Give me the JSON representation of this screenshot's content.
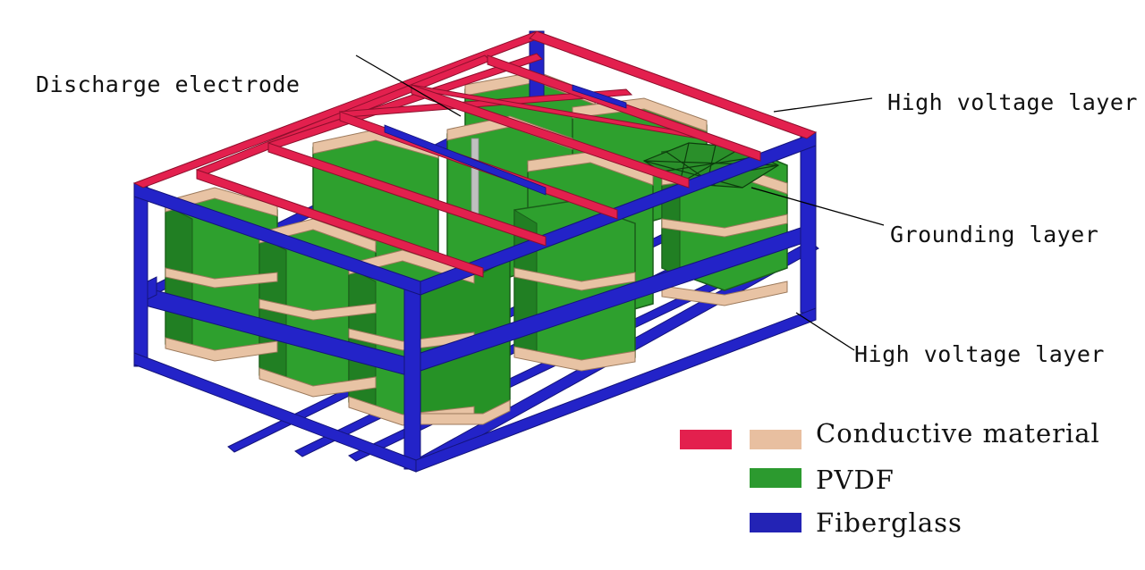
{
  "labels": {
    "discharge_electrode": "Discharge electrode",
    "high_voltage_top": "High voltage layer",
    "grounding": "Grounding layer",
    "high_voltage_bottom": "High voltage layer"
  },
  "legend": [
    {
      "text": "Conductive material",
      "colors": [
        "#e3204e",
        "#e8bfa0"
      ]
    },
    {
      "text": "PVDF",
      "colors": [
        "#2c9a2f"
      ]
    },
    {
      "text": "Fiberglass",
      "colors": [
        "#2323b5"
      ]
    }
  ],
  "colors": {
    "fiberglass": "#2323c8",
    "fiberglass_dark": "#1a1a9a",
    "conductive_red": "#e3204e",
    "conductive_tan": "#e8c3a4",
    "pvdf": "#2ea02e",
    "pvdf_dark": "#1f7a22",
    "pvdf_light": "#41b041",
    "electrode": "#b8b8b8"
  }
}
